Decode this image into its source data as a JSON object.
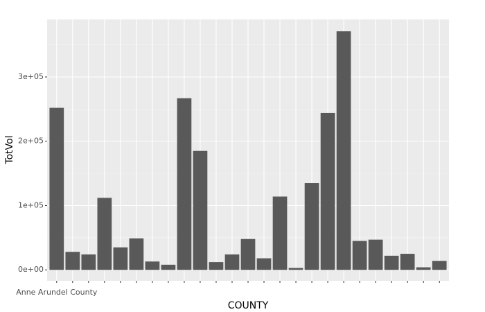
{
  "chart_data": {
    "type": "bar",
    "x_label": "COUNTY",
    "y_label": "TotVol",
    "categories": [
      "Anne Arundel County",
      null,
      null,
      null,
      null,
      null,
      null,
      null,
      null,
      null,
      null,
      null,
      null,
      null,
      null,
      null,
      null,
      null,
      null,
      null,
      null,
      null,
      null,
      null,
      null
    ],
    "values": [
      252000,
      28000,
      24000,
      112000,
      35000,
      49000,
      13000,
      8000,
      267000,
      185000,
      12000,
      24000,
      48000,
      18000,
      114000,
      3000,
      135000,
      244000,
      371000,
      45000,
      47000,
      22000,
      25000,
      4000,
      14000
    ],
    "color": "#595959",
    "ylim": [
      -17000,
      389500
    ],
    "yticks": [
      {
        "value": 0,
        "label": "0e+00"
      },
      {
        "value": 100000,
        "label": "1e+05"
      },
      {
        "value": 200000,
        "label": "2e+05"
      },
      {
        "value": 300000,
        "label": "3e+05"
      }
    ],
    "grid": true
  }
}
